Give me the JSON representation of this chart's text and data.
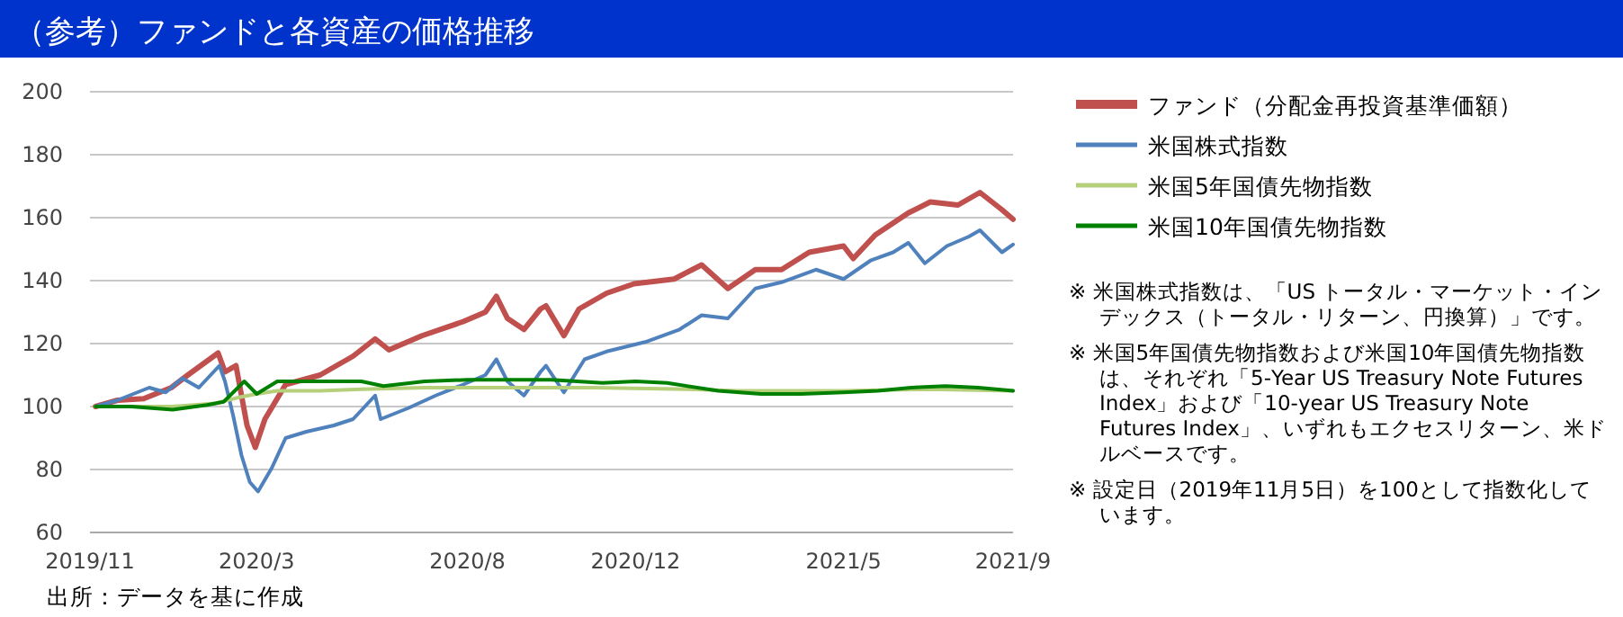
{
  "chart_data": {
    "type": "line",
    "title": "（参考）ファンドと各資産の価格推移",
    "xlim": [
      "2019-11-01",
      "2021-09-01"
    ],
    "xticks": [
      {
        "value": "2019-11",
        "label": "2019/11"
      },
      {
        "value": "2020-03",
        "label": "2020/3"
      },
      {
        "value": "2020-08",
        "label": "2020/8"
      },
      {
        "value": "2020-12",
        "label": "2020/12"
      },
      {
        "value": "2021-05",
        "label": "2021/5"
      },
      {
        "value": "2021-09",
        "label": "2021/9"
      }
    ],
    "ylim": [
      60,
      200
    ],
    "yticks": [
      60,
      80,
      100,
      120,
      140,
      160,
      180,
      200
    ],
    "grid": "y",
    "legend": "right",
    "line_style": "solid",
    "series": [
      {
        "name": "ファンド（分配金再投資基準価額）",
        "color": "#c0504d",
        "x": [
          "2019-11-05",
          "2019-11-21",
          "2019-12-10",
          "2019-12-30",
          "2020-01-11",
          "2020-02-02",
          "2020-02-07",
          "2020-02-15",
          "2020-02-23",
          "2020-02-29",
          "2020-03-07",
          "2020-03-22",
          "2020-04-16",
          "2020-05-10",
          "2020-05-26",
          "2020-06-05",
          "2020-06-29",
          "2020-07-29",
          "2020-08-14",
          "2020-08-22",
          "2020-08-30",
          "2020-09-11",
          "2020-09-23",
          "2020-09-27",
          "2020-10-10",
          "2020-10-21",
          "2020-11-10",
          "2020-11-30",
          "2020-12-29",
          "2021-01-18",
          "2021-02-06",
          "2021-02-26",
          "2021-03-17",
          "2021-04-06",
          "2021-05-01",
          "2021-05-08",
          "2021-05-24",
          "2021-06-17",
          "2021-07-03",
          "2021-07-23",
          "2021-08-08",
          "2021-08-24",
          "2021-09-01"
        ],
        "values": [
          100,
          102,
          102.5,
          106,
          110,
          117,
          111,
          113,
          94,
          87,
          96,
          107,
          110,
          116,
          121.5,
          118,
          122.5,
          127,
          130,
          135,
          128,
          124.5,
          131,
          132,
          122.5,
          131,
          136,
          139,
          140.5,
          145,
          137.5,
          143.5,
          143.5,
          149,
          151,
          147,
          154.5,
          161.5,
          165,
          164,
          168,
          162.5,
          159.5
        ]
      },
      {
        "name": "米国株式指数",
        "color": "#4f81bd",
        "x": [
          "2019-11-05",
          "2019-11-21",
          "2019-12-14",
          "2019-12-26",
          "2020-01-07",
          "2020-01-19",
          "2020-02-03",
          "2020-02-07",
          "2020-02-13",
          "2020-02-19",
          "2020-02-25",
          "2020-03-02",
          "2020-03-12",
          "2020-03-22",
          "2020-04-06",
          "2020-04-26",
          "2020-05-10",
          "2020-05-26",
          "2020-05-30",
          "2020-06-19",
          "2020-07-09",
          "2020-07-29",
          "2020-08-14",
          "2020-08-22",
          "2020-08-30",
          "2020-09-11",
          "2020-09-23",
          "2020-09-27",
          "2020-10-10",
          "2020-10-25",
          "2020-11-10",
          "2020-12-08",
          "2021-01-02",
          "2021-01-18",
          "2021-02-06",
          "2021-02-26",
          "2021-03-17",
          "2021-04-11",
          "2021-05-01",
          "2021-05-21",
          "2021-06-06",
          "2021-06-17",
          "2021-06-29",
          "2021-07-15",
          "2021-07-31",
          "2021-08-08",
          "2021-08-24",
          "2021-09-01"
        ],
        "values": [
          100,
          102,
          106,
          104.5,
          109,
          106,
          113,
          108,
          97,
          84.5,
          76,
          73,
          80.5,
          90,
          92,
          94,
          96,
          103.5,
          96,
          99.5,
          103.5,
          107,
          110,
          115,
          108,
          103.5,
          111,
          113,
          104.5,
          115,
          117.5,
          120.5,
          124.5,
          129,
          128,
          137.5,
          139.5,
          143.5,
          140.5,
          146.5,
          149,
          152,
          145.5,
          151,
          154,
          156,
          149,
          151.5
        ]
      },
      {
        "name": "米国5年国債先物指数",
        "color": "#b5cf7a",
        "x": [
          "2019-11-05",
          "2019-12-01",
          "2019-12-31",
          "2020-01-31",
          "2020-02-18",
          "2020-03-01",
          "2020-03-16",
          "2020-04-16",
          "2020-05-16",
          "2020-07-01",
          "2020-08-31",
          "2020-10-31",
          "2021-01-08",
          "2021-02-14",
          "2021-05-01",
          "2021-07-01",
          "2021-09-01"
        ],
        "values": [
          100,
          100,
          100,
          101,
          103,
          104,
          105,
          105,
          105.5,
          106,
          106,
          106,
          105.5,
          105,
          105,
          105.5,
          105
        ]
      },
      {
        "name": "米国10年国債先物指数",
        "color": "#008000",
        "x": [
          "2019-11-05",
          "2019-12-01",
          "2019-12-31",
          "2020-01-25",
          "2020-02-06",
          "2020-02-21",
          "2020-03-01",
          "2020-03-16",
          "2020-04-16",
          "2020-05-16",
          "2020-06-01",
          "2020-07-01",
          "2020-08-01",
          "2020-08-31",
          "2020-10-01",
          "2020-11-07",
          "2020-12-01",
          "2020-12-24",
          "2021-01-30",
          "2021-03-02",
          "2021-03-31",
          "2021-05-01",
          "2021-05-26",
          "2021-06-19",
          "2021-07-14",
          "2021-08-07",
          "2021-09-01"
        ],
        "values": [
          100,
          100,
          99,
          100.5,
          101.5,
          108,
          104,
          108,
          108,
          108,
          106.5,
          108,
          108.5,
          108.5,
          108.5,
          107.5,
          108,
          107.5,
          105,
          104,
          104,
          104.5,
          105,
          106,
          106.5,
          106,
          105
        ]
      }
    ],
    "annotations": [
      "※ 米国株式指数は、「US トータル・マーケット・インデックス（トータル・リターン、円換算）」です。",
      "※ 米国5年国債先物指数および米国10年国債先物指数は、それぞれ「5-Year US Treasury Note Futures Index」および「10-year US Treasury Note Futures Index」、いずれもエクセスリターン、米ドルベースです。",
      "※ 設定日（2019年11月5日）を100として指数化しています。",
      "出所：データを基に作成"
    ]
  }
}
